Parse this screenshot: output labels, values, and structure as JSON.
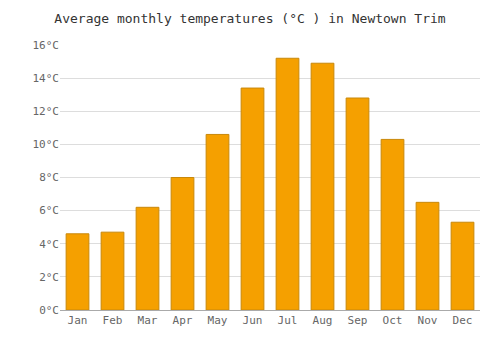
{
  "chart_data": {
    "type": "bar",
    "title": "Average monthly temperatures (°C ) in Newtown Trim",
    "categories": [
      "Jan",
      "Feb",
      "Mar",
      "Apr",
      "May",
      "Jun",
      "Jul",
      "Aug",
      "Sep",
      "Oct",
      "Nov",
      "Dec"
    ],
    "values": [
      4.6,
      4.7,
      6.2,
      8.0,
      10.6,
      13.4,
      15.2,
      14.9,
      12.8,
      10.3,
      6.5,
      5.3
    ],
    "color": "#F5A000",
    "ylim": [
      0,
      16
    ],
    "yticks": [
      {
        "value": 0,
        "label": "0°C"
      },
      {
        "value": 2,
        "label": "2°C"
      },
      {
        "value": 4,
        "label": "4°C"
      },
      {
        "value": 6,
        "label": "6°C"
      },
      {
        "value": 8,
        "label": "8°C"
      },
      {
        "value": 10,
        "label": "10°C"
      },
      {
        "value": 12,
        "label": "12°C"
      },
      {
        "value": 14,
        "label": "14°C"
      },
      {
        "value": 16,
        "label": "16°C"
      }
    ],
    "grid": true
  }
}
